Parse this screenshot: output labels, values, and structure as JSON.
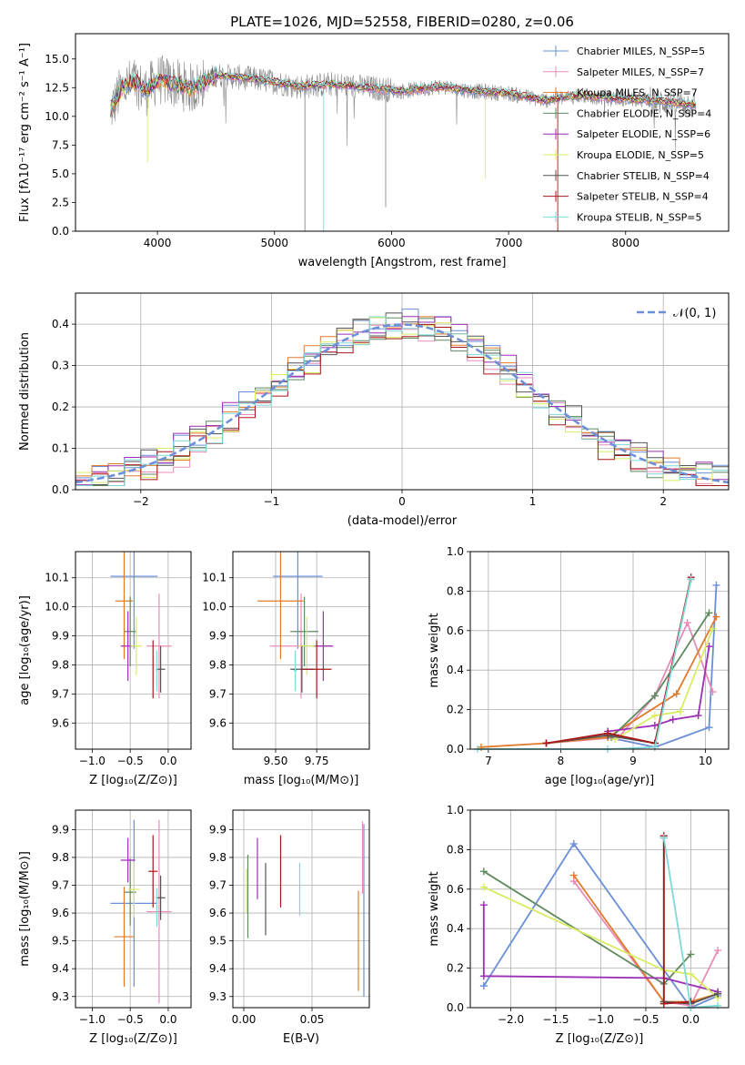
{
  "title": "PLATE=1026, MJD=52558, FIBERID=0280, z=0.06",
  "colors": {
    "blue": "#6a8fd8",
    "pink": "#e98bb8",
    "orange": "#e07b2a",
    "green": "#5e8a5e",
    "purple": "#9b2fb5",
    "yellow": "#d8ec60",
    "dgray": "#555555",
    "dred": "#a81818",
    "cyan": "#7fd8d8",
    "gray": "#8a8a8a"
  },
  "chart_data": [
    {
      "type": "line",
      "xlabel": "wavelength [Angstrom, rest frame]",
      "ylabel": "Flux [fλ10⁻¹⁷ erg cm⁻² s⁻¹ A⁻¹]",
      "xlim": [
        3300,
        8880
      ],
      "ylim": [
        0,
        17.2
      ],
      "xticks": [
        "4000",
        "5000",
        "6000",
        "7000",
        "8000"
      ],
      "yticks": [
        "0.0",
        "2.5",
        "5.0",
        "7.5",
        "10.0",
        "12.5",
        "15.0"
      ],
      "grid": false,
      "legend_position": "top-right",
      "legend": [
        {
          "label": "Chabrier MILES, N_SSP=5",
          "color": "blue"
        },
        {
          "label": "Salpeter MILES, N_SSP=7",
          "color": "pink"
        },
        {
          "label": "Kroupa MILES, N_SSP=7",
          "color": "orange"
        },
        {
          "label": "Chabrier ELODIE, N_SSP=4",
          "color": "green"
        },
        {
          "label": "Salpeter ELODIE, N_SSP=6",
          "color": "purple"
        },
        {
          "label": "Kroupa ELODIE, N_SSP=5",
          "color": "yellow"
        },
        {
          "label": "Chabrier STELIB, N_SSP=4",
          "color": "dgray"
        },
        {
          "label": "Salpeter STELIB, N_SSP=4",
          "color": "dred"
        },
        {
          "label": "Kroupa STELIB, N_SSP=5",
          "color": "cyan"
        }
      ],
      "continuum": [
        [
          3600,
          10.5
        ],
        [
          3700,
          12.5
        ],
        [
          3800,
          13.0
        ],
        [
          3900,
          12.2
        ],
        [
          4000,
          13.2
        ],
        [
          4100,
          13.0
        ],
        [
          4300,
          12.4
        ],
        [
          4500,
          13.6
        ],
        [
          4700,
          13.4
        ],
        [
          5000,
          13.0
        ],
        [
          5200,
          12.6
        ],
        [
          5500,
          12.8
        ],
        [
          5800,
          12.5
        ],
        [
          6100,
          12.2
        ],
        [
          6400,
          12.6
        ],
        [
          6700,
          12.2
        ],
        [
          7000,
          12.0
        ],
        [
          7300,
          11.4
        ],
        [
          7600,
          11.8
        ],
        [
          7900,
          11.6
        ],
        [
          8200,
          11.4
        ],
        [
          8500,
          11.1
        ],
        [
          8600,
          11.0
        ]
      ]
    },
    {
      "type": "bar",
      "xlabel": "(data-model)/error",
      "ylabel": "Normed distribution",
      "xlim": [
        -2.5,
        2.5
      ],
      "ylim": [
        0,
        0.475
      ],
      "xticks": [
        "−2",
        "−1",
        "0",
        "1",
        "2"
      ],
      "yticks": [
        "0.0",
        "0.1",
        "0.2",
        "0.3",
        "0.4"
      ],
      "grid": true,
      "legend": {
        "label": "𝒩(0, 1)",
        "color": "blue",
        "position": "top-right"
      },
      "bins": 40,
      "series": [
        {
          "color": "blue",
          "offset": 0.01
        },
        {
          "color": "pink",
          "offset": -0.012
        },
        {
          "color": "orange",
          "offset": 0.004
        },
        {
          "color": "green",
          "offset": -0.006
        },
        {
          "color": "purple",
          "offset": 0.016
        },
        {
          "color": "yellow",
          "offset": -0.003
        },
        {
          "color": "dgray",
          "offset": 0.008
        },
        {
          "color": "dred",
          "offset": -0.015
        },
        {
          "color": "cyan",
          "offset": 0.0
        }
      ]
    },
    {
      "type": "scatter",
      "xlabel": "Z [log₁₀(Z/Z⊙)]",
      "ylabel": "age  [log₁₀(age/yr)]",
      "xlim": [
        -1.22,
        0.3
      ],
      "ylim": [
        9.51,
        10.19
      ],
      "xticks": [
        -1.0,
        -0.5,
        0.0
      ],
      "xticklabels": [
        "−1.0",
        "−0.5",
        "0.0"
      ],
      "yticks": [
        9.6,
        9.7,
        9.8,
        9.9,
        10.0,
        10.1
      ],
      "yticklabels": [
        "9.6",
        "9.7",
        "9.8",
        "9.9",
        "10.0",
        "10.1"
      ],
      "grid": true,
      "points": [
        {
          "color": "blue",
          "x": -0.45,
          "xerr": 0.62,
          "y": 10.105,
          "yerr": 0.25
        },
        {
          "color": "pink",
          "x": -0.12,
          "xerr": 0.33,
          "y": 9.865,
          "yerr": 0.18
        },
        {
          "color": "orange",
          "x": -0.58,
          "xerr": 0.23,
          "y": 10.02,
          "yerr": 0.2
        },
        {
          "color": "green",
          "x": -0.5,
          "xerr": 0.16,
          "y": 9.915,
          "yerr": 0.12
        },
        {
          "color": "purple",
          "x": -0.53,
          "xerr": 0.19,
          "y": 9.865,
          "yerr": 0.12
        },
        {
          "color": "yellow",
          "x": -0.42,
          "xerr": 0.15,
          "y": 9.865,
          "yerr": 0.1
        },
        {
          "color": "dgray",
          "x": -0.1,
          "xerr": 0.12,
          "y": 9.785,
          "yerr": 0.08
        },
        {
          "color": "dred",
          "x": -0.2,
          "xerr": 0.01,
          "y": 9.785,
          "yerr": 0.1
        },
        {
          "color": "cyan",
          "x": -0.15,
          "xerr": 0.02,
          "y": 9.78,
          "yerr": 0.07
        }
      ]
    },
    {
      "type": "scatter",
      "xlabel": "mass [log₁₀(M/M⊙)]",
      "ylabel": "",
      "xlim": [
        9.24,
        10.07
      ],
      "ylim": [
        9.51,
        10.19
      ],
      "xticks": [
        9.5,
        9.75
      ],
      "xticklabels": [
        "9.50",
        "9.75"
      ],
      "yticks": [
        9.6,
        9.7,
        9.8,
        9.9,
        10.0,
        10.1
      ],
      "yticklabels": [
        "9.6",
        "9.7",
        "9.8",
        "9.9",
        "10.0",
        "10.1"
      ],
      "grid": true,
      "points": [
        {
          "color": "blue",
          "x": 9.635,
          "xerr": 0.3,
          "y": 10.105,
          "yerr": 0.25
        },
        {
          "color": "pink",
          "x": 9.655,
          "xerr": 0.38,
          "y": 9.865,
          "yerr": 0.18
        },
        {
          "color": "orange",
          "x": 9.53,
          "xerr": 0.28,
          "y": 10.02,
          "yerr": 0.2
        },
        {
          "color": "green",
          "x": 9.675,
          "xerr": 0.17,
          "y": 9.915,
          "yerr": 0.12
        },
        {
          "color": "purple",
          "x": 9.79,
          "xerr": 0.12,
          "y": 9.865,
          "yerr": 0.12
        },
        {
          "color": "yellow",
          "x": 9.69,
          "xerr": 0.1,
          "y": 9.865,
          "yerr": 0.1
        },
        {
          "color": "dgray",
          "x": 9.66,
          "xerr": 0.14,
          "y": 9.785,
          "yerr": 0.08
        },
        {
          "color": "dred",
          "x": 9.75,
          "xerr": 0.18,
          "y": 9.785,
          "yerr": 0.1
        },
        {
          "color": "cyan",
          "x": 9.62,
          "xerr": 0.02,
          "y": 9.78,
          "yerr": 0.07
        }
      ]
    },
    {
      "type": "line",
      "xlabel": "age  [log₁₀(age/yr)]",
      "ylabel": "mass weight",
      "xlim": [
        6.75,
        10.32
      ],
      "ylim": [
        0,
        1.0
      ],
      "xticks": [
        7,
        8,
        9,
        10
      ],
      "xticklabels": [
        "7",
        "8",
        "9",
        "10"
      ],
      "yticks": [
        0,
        0.2,
        0.4,
        0.6,
        0.8,
        1.0
      ],
      "yticklabels": [
        "0.0",
        "0.2",
        "0.4",
        "0.6",
        "0.8",
        "1.0"
      ],
      "grid": true,
      "series": [
        {
          "color": "blue",
          "points": [
            [
              8.65,
              0.06
            ],
            [
              9.3,
              0.01
            ],
            [
              10.05,
              0.11
            ],
            [
              10.15,
              0.83
            ]
          ]
        },
        {
          "color": "pink",
          "points": [
            [
              7.8,
              0.03
            ],
            [
              8.8,
              0.06
            ],
            [
              9.3,
              0.27
            ],
            [
              9.75,
              0.64
            ],
            [
              10.1,
              0.29
            ]
          ]
        },
        {
          "color": "orange",
          "points": [
            [
              6.9,
              0.01
            ],
            [
              7.8,
              0.03
            ],
            [
              8.65,
              0.06
            ],
            [
              9.6,
              0.28
            ],
            [
              10.15,
              0.67
            ]
          ]
        },
        {
          "color": "green",
          "points": [
            [
              8.7,
              0.06
            ],
            [
              9.3,
              0.27
            ],
            [
              10.05,
              0.69
            ]
          ]
        },
        {
          "color": "purple",
          "points": [
            [
              8.65,
              0.09
            ],
            [
              9.3,
              0.12
            ],
            [
              9.55,
              0.15
            ],
            [
              9.9,
              0.17
            ],
            [
              10.05,
              0.52
            ]
          ]
        },
        {
          "color": "yellow",
          "points": [
            [
              8.75,
              0.05
            ],
            [
              9.3,
              0.17
            ],
            [
              9.65,
              0.19
            ],
            [
              10.1,
              0.61
            ]
          ]
        },
        {
          "color": "dgray",
          "points": [
            [
              7.8,
              0.03
            ],
            [
              8.65,
              0.07
            ],
            [
              9.3,
              0.03
            ],
            [
              9.8,
              0.86
            ]
          ]
        },
        {
          "color": "dred",
          "points": [
            [
              7.8,
              0.03
            ],
            [
              8.65,
              0.08
            ],
            [
              9.3,
              0.03
            ],
            [
              9.8,
              0.87
            ]
          ]
        },
        {
          "color": "cyan",
          "points": [
            [
              6.85,
              0.0
            ],
            [
              8.65,
              0.0
            ],
            [
              9.3,
              0.01
            ],
            [
              9.8,
              0.86
            ]
          ]
        }
      ]
    },
    {
      "type": "scatter",
      "xlabel": "Z [log₁₀(Z/Z⊙)]",
      "ylabel": "mass [log₁₀(M/M⊙)]",
      "xlim": [
        -1.22,
        0.3
      ],
      "ylim": [
        9.26,
        9.97
      ],
      "xticks": [
        -1.0,
        -0.5,
        0.0
      ],
      "xticklabels": [
        "−1.0",
        "−0.5",
        "0.0"
      ],
      "yticks": [
        9.3,
        9.4,
        9.5,
        9.6,
        9.7,
        9.8,
        9.9
      ],
      "yticklabels": [
        "9.3",
        "9.4",
        "9.5",
        "9.6",
        "9.7",
        "9.8",
        "9.9"
      ],
      "grid": true,
      "points": [
        {
          "color": "blue",
          "x": -0.45,
          "xerr": 0.62,
          "y": 9.635,
          "yerr": 0.3
        },
        {
          "color": "pink",
          "x": -0.12,
          "xerr": 0.33,
          "y": 9.605,
          "yerr": 0.33
        },
        {
          "color": "orange",
          "x": -0.58,
          "xerr": 0.26,
          "y": 9.515,
          "yerr": 0.18
        },
        {
          "color": "green",
          "x": -0.5,
          "xerr": 0.16,
          "y": 9.675,
          "yerr": 0.12
        },
        {
          "color": "purple",
          "x": -0.53,
          "xerr": 0.19,
          "y": 9.79,
          "yerr": 0.08
        },
        {
          "color": "yellow",
          "x": -0.45,
          "xerr": 0.15,
          "y": 9.685,
          "yerr": 0.1
        },
        {
          "color": "dgray",
          "x": -0.1,
          "xerr": 0.12,
          "y": 9.655,
          "yerr": 0.08
        },
        {
          "color": "dred",
          "x": -0.2,
          "xerr": 0.12,
          "y": 9.75,
          "yerr": 0.13
        },
        {
          "color": "cyan",
          "x": -0.15,
          "xerr": 0.02,
          "y": 9.62,
          "yerr": 0.07
        }
      ]
    },
    {
      "type": "scatter",
      "xlabel": "E(B-V)",
      "ylabel": "",
      "xlim": [
        -0.008,
        0.092
      ],
      "ylim": [
        9.26,
        9.97
      ],
      "xticks": [
        0.0,
        0.05
      ],
      "xticklabels": [
        "0.00",
        "0.05"
      ],
      "yticks": [
        9.3,
        9.4,
        9.5,
        9.6,
        9.7,
        9.8,
        9.9
      ],
      "yticklabels": [
        "9.3",
        "9.4",
        "9.5",
        "9.6",
        "9.7",
        "9.8",
        "9.9"
      ],
      "grid": true,
      "points": [
        {
          "color": "blue",
          "x": 0.088,
          "xerr": 0.0,
          "y": 9.61,
          "yerr": 0.31
        },
        {
          "color": "pink",
          "x": 0.087,
          "xerr": 0.0,
          "y": 9.8,
          "yerr": 0.13
        },
        {
          "color": "orange",
          "x": 0.084,
          "xerr": 0.0,
          "y": 9.5,
          "yerr": 0.18
        },
        {
          "color": "green",
          "x": 0.003,
          "xerr": 0.0,
          "y": 9.66,
          "yerr": 0.15
        },
        {
          "color": "purple",
          "x": 0.01,
          "xerr": 0.0,
          "y": 9.76,
          "yerr": 0.11
        },
        {
          "color": "yellow",
          "x": 0.002,
          "xerr": 0.0,
          "y": 9.68,
          "yerr": 0.08
        },
        {
          "color": "dgray",
          "x": 0.016,
          "xerr": 0.0,
          "y": 9.65,
          "yerr": 0.13
        },
        {
          "color": "dred",
          "x": 0.027,
          "xerr": 0.0,
          "y": 9.75,
          "yerr": 0.13
        },
        {
          "color": "cyan",
          "x": 0.041,
          "xerr": 0.0,
          "y": 9.685,
          "yerr": 0.095
        }
      ]
    },
    {
      "type": "line",
      "xlabel": "Z [log₁₀(Z/Z⊙)]",
      "ylabel": "mass weight",
      "xlim": [
        -2.45,
        0.42
      ],
      "ylim": [
        0,
        1.0
      ],
      "xticks": [
        -2.0,
        -1.5,
        -1.0,
        -0.5,
        0.0
      ],
      "xticklabels": [
        "−2.0",
        "−1.5",
        "−1.0",
        "−0.5",
        "0.0"
      ],
      "yticks": [
        0,
        0.2,
        0.4,
        0.6,
        0.8,
        1.0
      ],
      "yticklabels": [
        "0.0",
        "0.2",
        "0.4",
        "0.6",
        "0.8",
        "1.0"
      ],
      "grid": true,
      "series": [
        {
          "color": "blue",
          "points": [
            [
              -2.3,
              0.11
            ],
            [
              -1.3,
              0.83
            ],
            [
              0.0,
              0.0
            ],
            [
              0.3,
              0.06
            ]
          ]
        },
        {
          "color": "pink",
          "points": [
            [
              -1.3,
              0.64
            ],
            [
              -0.3,
              0.03
            ],
            [
              0.0,
              0.01
            ],
            [
              0.3,
              0.29
            ]
          ]
        },
        {
          "color": "orange",
          "points": [
            [
              -1.3,
              0.67
            ],
            [
              -0.3,
              0.03
            ],
            [
              0.0,
              0.03
            ],
            [
              0.3,
              0.07
            ]
          ]
        },
        {
          "color": "green",
          "points": [
            [
              -2.3,
              0.69
            ],
            [
              -0.3,
              0.12
            ],
            [
              0.0,
              0.27
            ]
          ]
        },
        {
          "color": "purple",
          "points": [
            [
              -2.3,
              0.52
            ],
            [
              -2.3,
              0.16
            ],
            [
              -0.3,
              0.15
            ],
            [
              0.3,
              0.08
            ]
          ]
        },
        {
          "color": "yellow",
          "points": [
            [
              -2.3,
              0.61
            ],
            [
              -0.3,
              0.19
            ],
            [
              0.0,
              0.17
            ],
            [
              0.3,
              0.05
            ]
          ]
        },
        {
          "color": "dgray",
          "points": [
            [
              -0.3,
              0.86
            ],
            [
              -0.3,
              0.03
            ],
            [
              0.0,
              0.02
            ],
            [
              0.3,
              0.07
            ]
          ]
        },
        {
          "color": "dred",
          "points": [
            [
              -0.3,
              0.87
            ],
            [
              -0.3,
              0.02
            ],
            [
              0.0,
              0.03
            ]
          ]
        },
        {
          "color": "cyan",
          "points": [
            [
              -0.3,
              0.86
            ],
            [
              0.0,
              0.0
            ],
            [
              0.3,
              0.01
            ]
          ]
        }
      ]
    }
  ]
}
